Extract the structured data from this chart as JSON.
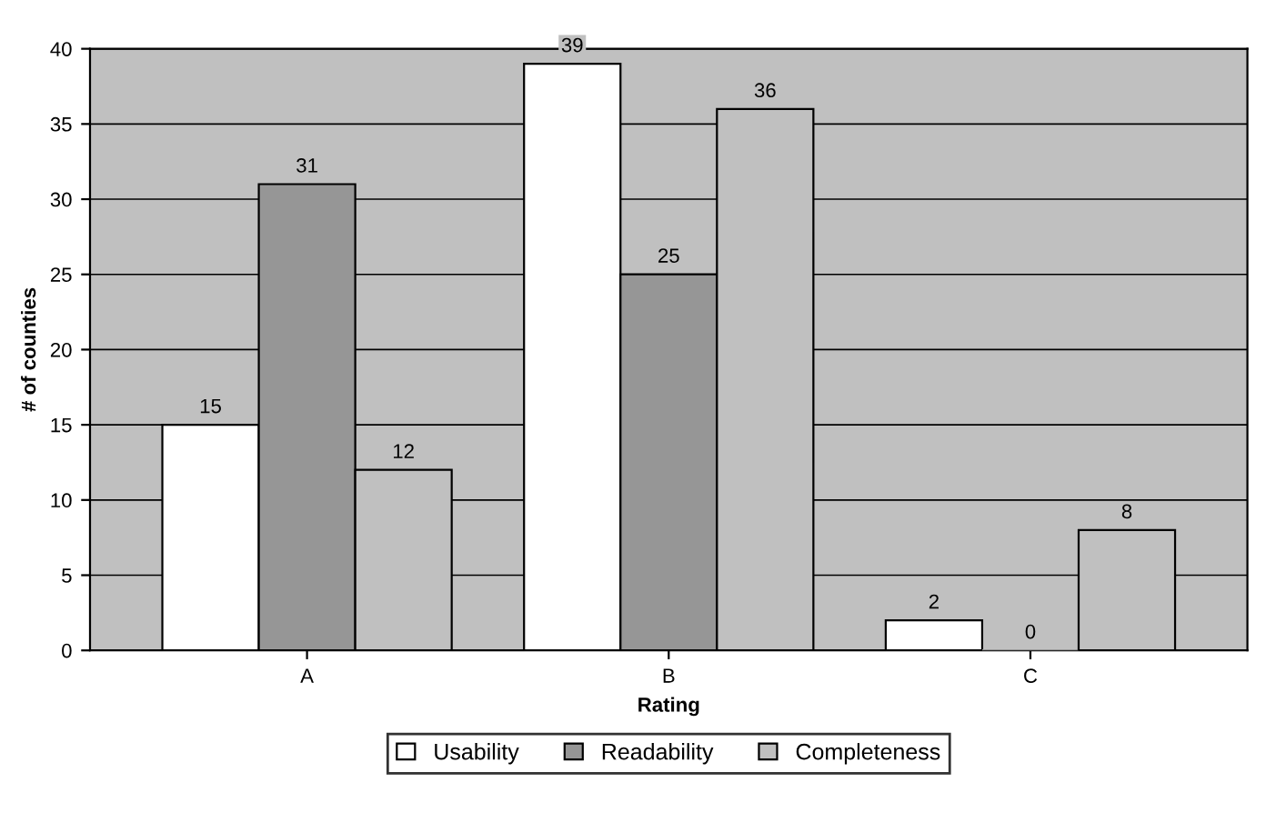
{
  "chart_data": {
    "type": "bar",
    "xlabel": "Rating",
    "ylabel": "# of counties",
    "categories": [
      "A",
      "B",
      "C"
    ],
    "series": [
      {
        "name": "Usability",
        "color": "#ffffff",
        "values": [
          15,
          39,
          2
        ]
      },
      {
        "name": "Readability",
        "color": "#969696",
        "values": [
          31,
          25,
          0
        ]
      },
      {
        "name": "Completeness",
        "color": "#c0c0c0",
        "values": [
          12,
          36,
          8
        ]
      }
    ],
    "ylim": [
      0,
      40
    ],
    "yticks": [
      0,
      5,
      10,
      15,
      20,
      25,
      30,
      35,
      40
    ],
    "grid": "y",
    "legend": "bottom",
    "data_labels": true
  }
}
